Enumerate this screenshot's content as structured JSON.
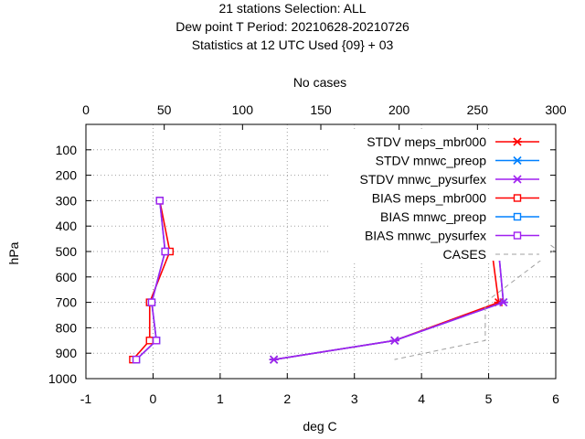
{
  "chart_data": {
    "type": "line",
    "title_lines": [
      "21 stations Selection: ALL",
      "Dew point T  Period: 20210628-20210726",
      "Statistics at 12 UTC  Used {09} + 03"
    ],
    "xlabel": "deg C",
    "ylabel": "hPa",
    "x2label": "No cases",
    "xlim": [
      -1,
      6
    ],
    "ylim": [
      1000,
      0
    ],
    "x2lim": [
      0,
      300
    ],
    "xticks": [
      "-1",
      "0",
      "1",
      "2",
      "3",
      "4",
      "5",
      "6"
    ],
    "yticks": [
      "100",
      "200",
      "300",
      "400",
      "500",
      "600",
      "700",
      "800",
      "900",
      "1000"
    ],
    "x2ticks": [
      "0",
      "50",
      "100",
      "150",
      "200",
      "250",
      "300"
    ],
    "grid": true,
    "legend_position": "top-right",
    "levels": [
      300,
      500,
      700,
      850,
      925
    ],
    "series": [
      {
        "name": "STDV meps_mbr000",
        "color": "#ff0000",
        "marker": "x",
        "x": [
          3.1,
          5.05,
          5.15,
          3.6,
          1.8
        ]
      },
      {
        "name": "STDV mnwc_preop",
        "color": "#0080ff",
        "marker": "x",
        "x": [
          3.12,
          5.15,
          5.22,
          3.6,
          1.8
        ]
      },
      {
        "name": "STDV mnwc_pysurfex",
        "color": "#a020f0",
        "marker": "x",
        "x": [
          3.12,
          5.15,
          5.22,
          3.6,
          1.8
        ]
      },
      {
        "name": "BIAS meps_mbr000",
        "color": "#ff0000",
        "marker": "square",
        "x": [
          0.1,
          0.25,
          -0.05,
          -0.05,
          -0.3
        ]
      },
      {
        "name": "BIAS mnwc_preop",
        "color": "#0080ff",
        "marker": "square",
        "x": [
          0.1,
          0.18,
          -0.02,
          0.05,
          -0.25
        ]
      },
      {
        "name": "BIAS mnwc_pysurfex",
        "color": "#a020f0",
        "marker": "square",
        "x": [
          0.1,
          0.18,
          -0.02,
          0.05,
          -0.25
        ]
      },
      {
        "name": "CASES",
        "color": "#a0a0a0",
        "dash": true,
        "cases": [
          259,
          300,
          255,
          255,
          197
        ],
        "levels": [
          300,
          490,
          700,
          850,
          925
        ]
      }
    ]
  }
}
